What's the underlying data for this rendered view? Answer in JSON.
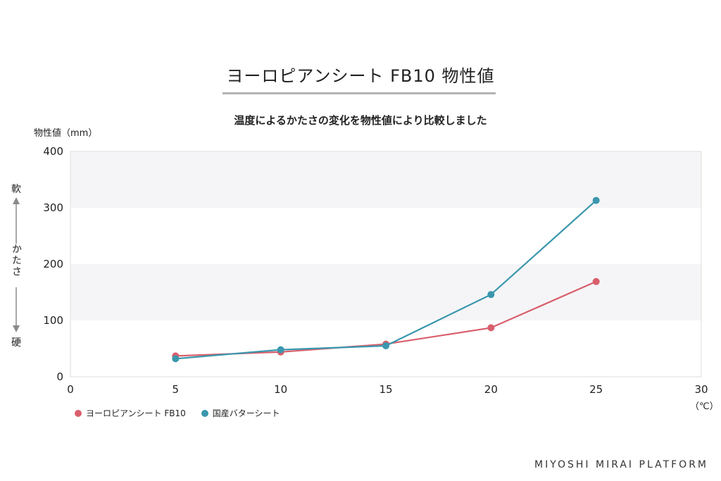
{
  "page": {
    "title": "ヨーロピアンシート FB10 物性値",
    "subtitle": "温度によるかたさの変化を物性値により比較しました",
    "brand": "MIYOSHI MIRAI PLATFORM"
  },
  "side_scale": {
    "soft": "軟",
    "middle": "かたさ",
    "hard": "硬"
  },
  "chart_data": {
    "type": "line",
    "title": "",
    "ylabel": "物性値（mm）",
    "xlabel": "（℃）",
    "x": [
      5,
      10,
      15,
      20,
      25
    ],
    "xlim": [
      0,
      30
    ],
    "ylim": [
      0,
      400
    ],
    "xticks": [
      0,
      5,
      10,
      15,
      20,
      25,
      30
    ],
    "yticks": [
      0,
      100,
      200,
      300,
      400
    ],
    "grid": "alternating horizontal bands",
    "legend_position": "bottom-left",
    "series": [
      {
        "name": "ヨーロピアンシート FB10",
        "color": "#d95f6c",
        "values": [
          37,
          44,
          58,
          87,
          169
        ]
      },
      {
        "name": "国産バターシート",
        "color": "#3a97ad",
        "values": [
          32,
          48,
          55,
          146,
          313
        ]
      }
    ]
  }
}
